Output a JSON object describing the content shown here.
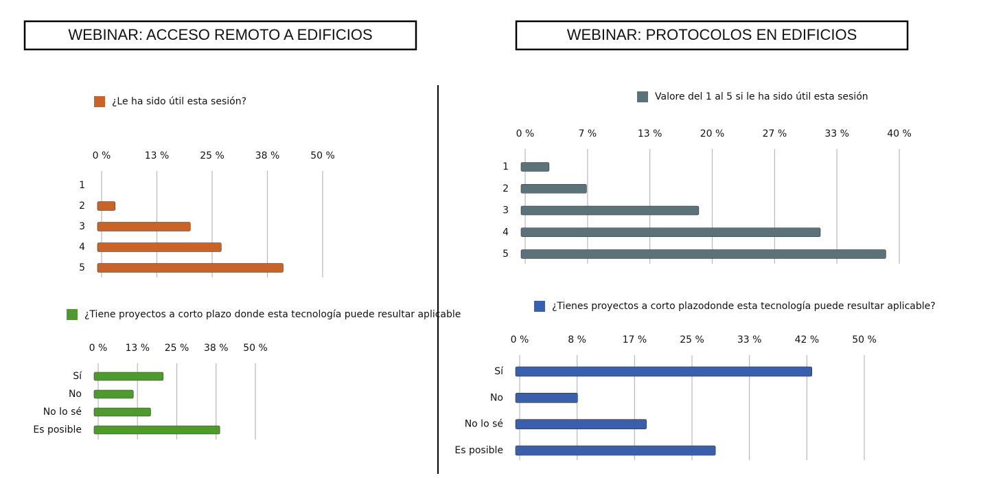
{
  "headers": [
    "WEBINAR: ACCESO REMOTO A EDIFICIOS",
    "WEBINAR: PROTOCOLOS EN EDIFICIOS"
  ],
  "chart_data": [
    {
      "type": "bar",
      "orientation": "horizontal",
      "categories": [
        "1",
        "2",
        "3",
        "4",
        "5"
      ],
      "series": [
        {
          "name": "¿Le ha sido útil esta sesión?",
          "color": "#c8642a",
          "values": [
            0,
            4,
            21,
            28,
            42
          ]
        }
      ],
      "xlim": [
        0,
        50
      ],
      "xticks": [
        {
          "value": 0,
          "label": "0 %"
        },
        {
          "value": 12.5,
          "label": "13 %"
        },
        {
          "value": 25,
          "label": "25 %"
        },
        {
          "value": 37.5,
          "label": "38 %"
        },
        {
          "value": 50,
          "label": "50 %"
        }
      ]
    },
    {
      "type": "bar",
      "orientation": "horizontal",
      "categories": [
        "Sí",
        "No",
        "No lo sé",
        "Es posible"
      ],
      "series": [
        {
          "name": "¿Tiene proyectos a corto plazo donde esta tecnología puede resultar aplicable",
          "color": "#4e9a2e",
          "values": [
            22,
            12.5,
            18,
            40
          ]
        }
      ],
      "xlim": [
        0,
        50
      ],
      "xticks": [
        {
          "value": 0,
          "label": "0 %"
        },
        {
          "value": 12.5,
          "label": "13 %"
        },
        {
          "value": 25,
          "label": "25 %"
        },
        {
          "value": 37.5,
          "label": "38 %"
        },
        {
          "value": 50,
          "label": "50 %"
        }
      ]
    },
    {
      "type": "bar",
      "orientation": "horizontal",
      "categories": [
        "1",
        "2",
        "3",
        "4",
        "5"
      ],
      "series": [
        {
          "name": "Valore del 1 al 5 si le ha sido útil esta sesión",
          "color": "#5b7378",
          "values": [
            3,
            7,
            19,
            32,
            39
          ]
        }
      ],
      "xlim": [
        0,
        40
      ],
      "xticks": [
        {
          "value": 0,
          "label": "0 %"
        },
        {
          "value": 6.67,
          "label": "7 %"
        },
        {
          "value": 13.33,
          "label": "13 %"
        },
        {
          "value": 20,
          "label": "20 %"
        },
        {
          "value": 26.67,
          "label": "27 %"
        },
        {
          "value": 33.33,
          "label": "33 %"
        },
        {
          "value": 40,
          "label": "40 %"
        }
      ]
    },
    {
      "type": "bar",
      "orientation": "horizontal",
      "categories": [
        "Sí",
        "No",
        "No lo sé",
        "Es posible"
      ],
      "series": [
        {
          "name": "¿Tienes proyectos a corto plazodonde esta tecnología puede resultar aplicable?",
          "color": "#3a5fae",
          "values": [
            43,
            9,
            19,
            29
          ]
        }
      ],
      "xlim": [
        0,
        50
      ],
      "xticks": [
        {
          "value": 0,
          "label": "0 %"
        },
        {
          "value": 8.33,
          "label": "8 %"
        },
        {
          "value": 16.67,
          "label": "17 %"
        },
        {
          "value": 25,
          "label": "25 %"
        },
        {
          "value": 33.33,
          "label": "33 %"
        },
        {
          "value": 41.67,
          "label": "42 %"
        },
        {
          "value": 50,
          "label": "50 %"
        }
      ]
    }
  ]
}
